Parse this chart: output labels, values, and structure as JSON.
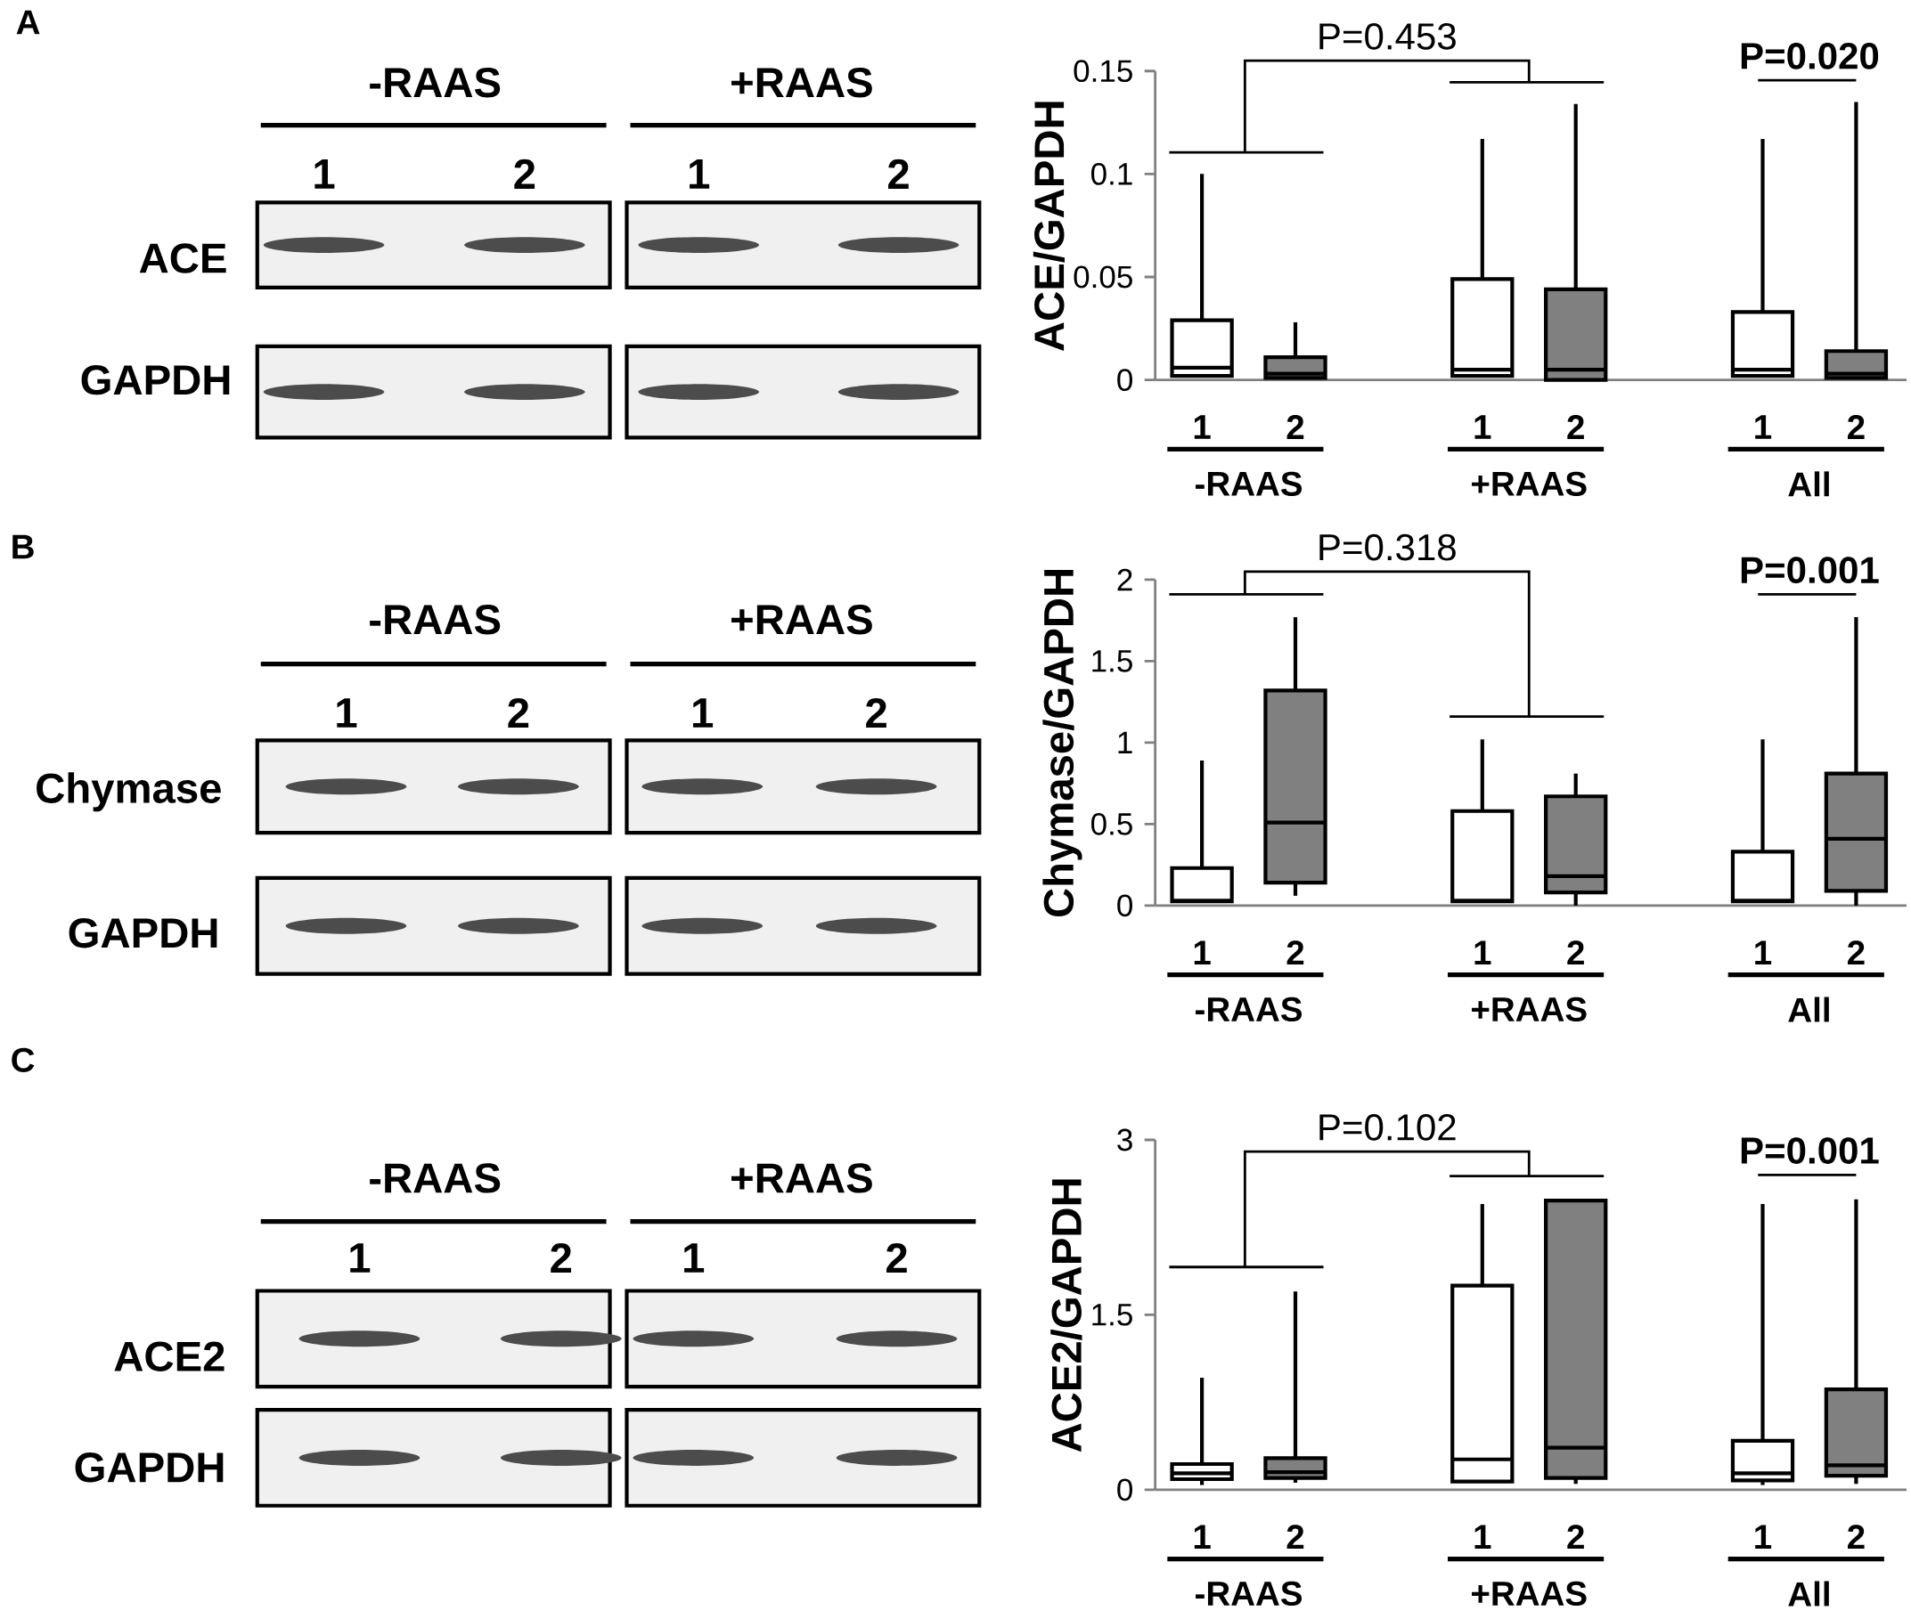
{
  "chart_data": [
    {
      "type": "other",
      "title": "A",
      "annotations": [
        "-RAAS",
        "+RAAS",
        "1",
        "2",
        "1",
        "2",
        "ACE",
        "GAPDH"
      ]
    },
    {
      "type": "box",
      "ylabel": "ACE/GAPDH",
      "categories": [
        "-RAAS",
        "+RAAS",
        "All"
      ],
      "ylim": [
        0,
        0.15
      ],
      "yticks": [
        0,
        0.05,
        0.1,
        0.15
      ],
      "annotations": [
        "P=0.453",
        "P=0.020"
      ],
      "series": [
        {
          "name": "1",
          "color": "#ffffff",
          "boxes": [
            {
              "low": 0.002,
              "q1": 0.002,
              "median": 0.006,
              "q3": 0.029,
              "high": 0.1
            },
            {
              "low": 0.002,
              "q1": 0.002,
              "median": 0.005,
              "q3": 0.049,
              "high": 0.117
            },
            {
              "low": 0.002,
              "q1": 0.002,
              "median": 0.005,
              "q3": 0.033,
              "high": 0.117
            }
          ]
        },
        {
          "name": "2",
          "color": "#808080",
          "boxes": [
            {
              "low": 0.001,
              "q1": 0.001,
              "median": 0.003,
              "q3": 0.011,
              "high": 0.028
            },
            {
              "low": 0,
              "q1": 0,
              "median": 0.005,
              "q3": 0.044,
              "high": 0.134
            },
            {
              "low": 0.001,
              "q1": 0.001,
              "median": 0.003,
              "q3": 0.014,
              "high": 0.135
            }
          ]
        }
      ]
    },
    {
      "type": "other",
      "title": "B",
      "annotations": [
        "-RAAS",
        "+RAAS",
        "1",
        "2",
        "1",
        "2",
        "Chymase",
        "GAPDH"
      ]
    },
    {
      "type": "box",
      "ylabel": "Chymase/GAPDH",
      "categories": [
        "-RAAS",
        "+RAAS",
        "All"
      ],
      "ylim": [
        0,
        2
      ],
      "yticks": [
        0,
        0.5,
        1,
        1.5,
        2
      ],
      "annotations": [
        "P=0.318",
        "P=0.001"
      ],
      "series": [
        {
          "name": "1",
          "color": "#ffffff",
          "boxes": [
            {
              "low": 0.02,
              "q1": 0.025,
              "median": 0.03,
              "q3": 0.23,
              "high": 0.89
            },
            {
              "low": 0.02,
              "q1": 0.025,
              "median": 0.03,
              "q3": 0.58,
              "high": 1.02
            },
            {
              "low": 0.02,
              "q1": 0.025,
              "median": 0.03,
              "q3": 0.33,
              "high": 1.02
            }
          ]
        },
        {
          "name": "2",
          "color": "#808080",
          "boxes": [
            {
              "low": 0.06,
              "q1": 0.14,
              "median": 0.51,
              "q3": 1.32,
              "high": 1.77
            },
            {
              "low": 0,
              "q1": 0.08,
              "median": 0.18,
              "q3": 0.67,
              "high": 0.81
            },
            {
              "low": 0,
              "q1": 0.09,
              "median": 0.41,
              "q3": 0.81,
              "high": 1.77
            }
          ]
        }
      ]
    },
    {
      "type": "other",
      "title": "C",
      "annotations": [
        "-RAAS",
        "+RAAS",
        "1",
        "2",
        "1",
        "2",
        "ACE2",
        "GAPDH"
      ]
    },
    {
      "type": "box",
      "ylabel": "ACE2/GAPDH",
      "categories": [
        "-RAAS",
        "+RAAS",
        "All"
      ],
      "ylim": [
        0,
        3
      ],
      "yticks": [
        0,
        1.5,
        3
      ],
      "annotations": [
        "P=0.102",
        "P=0.001"
      ],
      "series": [
        {
          "name": "1",
          "color": "#ffffff",
          "boxes": [
            {
              "low": 0.04,
              "q1": 0.09,
              "median": 0.14,
              "q3": 0.22,
              "high": 0.96
            },
            {
              "low": 0.07,
              "q1": 0.07,
              "median": 0.26,
              "q3": 1.75,
              "high": 2.45
            },
            {
              "low": 0.04,
              "q1": 0.08,
              "median": 0.14,
              "q3": 0.42,
              "high": 2.45
            }
          ]
        },
        {
          "name": "2",
          "color": "#808080",
          "boxes": [
            {
              "low": 0.06,
              "q1": 0.1,
              "median": 0.15,
              "q3": 0.27,
              "high": 1.7
            },
            {
              "low": 0.05,
              "q1": 0.1,
              "median": 0.36,
              "q3": 2.48,
              "high": 2.48
            },
            {
              "low": 0.05,
              "q1": 0.12,
              "median": 0.21,
              "q3": 0.86,
              "high": 2.49
            }
          ]
        }
      ]
    }
  ]
}
